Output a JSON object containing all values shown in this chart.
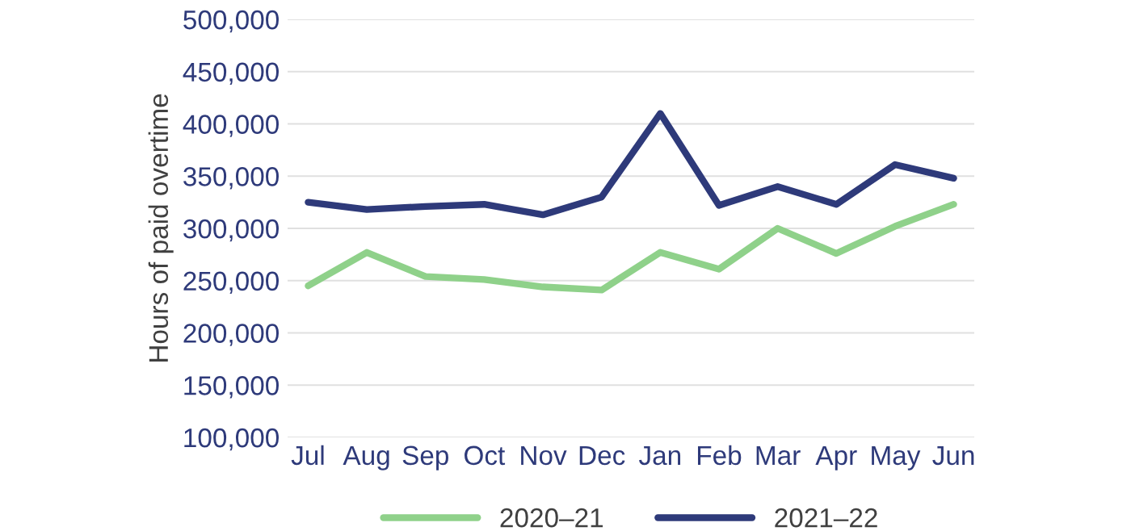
{
  "chart_data": {
    "type": "line",
    "ylabel": "Hours of paid overtime",
    "categories": [
      "Jul",
      "Aug",
      "Sep",
      "Oct",
      "Nov",
      "Dec",
      "Jan",
      "Feb",
      "Mar",
      "Apr",
      "May",
      "Jun"
    ],
    "series": [
      {
        "name": "2020–21",
        "color": "#8fd18a",
        "values": [
          245000,
          277000,
          254000,
          251000,
          244000,
          241000,
          277000,
          261000,
          300000,
          276000,
          302000,
          323000
        ]
      },
      {
        "name": "2021–22",
        "color": "#2e3a7a",
        "values": [
          325000,
          318000,
          321000,
          323000,
          313000,
          330000,
          410000,
          322000,
          340000,
          323000,
          361000,
          348000
        ]
      }
    ],
    "ylim": [
      100000,
      500000
    ],
    "yticks": [
      {
        "value": 100000,
        "label": "100,000"
      },
      {
        "value": 150000,
        "label": "150,000"
      },
      {
        "value": 200000,
        "label": "200,000"
      },
      {
        "value": 250000,
        "label": "250,000"
      },
      {
        "value": 300000,
        "label": "300,000"
      },
      {
        "value": 350000,
        "label": "350,000"
      },
      {
        "value": 400000,
        "label": "400,000"
      },
      {
        "value": 450000,
        "label": "450,000"
      },
      {
        "value": 500000,
        "label": "500,000"
      }
    ],
    "grid": "y",
    "legend": "bottom",
    "marker": "none",
    "line_style": "solid"
  }
}
